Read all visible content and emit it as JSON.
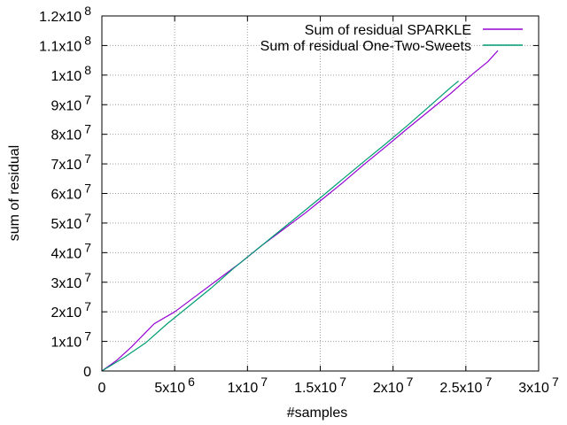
{
  "chart_data": {
    "type": "line",
    "title": "",
    "xlabel": "#samples",
    "ylabel": "sum of residual",
    "xlim": [
      0,
      30000000
    ],
    "ylim": [
      0,
      120000000
    ],
    "grid": true,
    "legend_position": "top-right",
    "x_ticks": [
      {
        "value": 0,
        "base": "0",
        "exp": ""
      },
      {
        "value": 5000000,
        "base": "5x10",
        "exp": "6"
      },
      {
        "value": 10000000,
        "base": "1x10",
        "exp": "7"
      },
      {
        "value": 15000000,
        "base": "1.5x10",
        "exp": "7"
      },
      {
        "value": 20000000,
        "base": "2x10",
        "exp": "7"
      },
      {
        "value": 25000000,
        "base": "2.5x10",
        "exp": "7"
      },
      {
        "value": 30000000,
        "base": "3x10",
        "exp": "7"
      }
    ],
    "y_ticks": [
      {
        "value": 0,
        "base": "0",
        "exp": ""
      },
      {
        "value": 10000000,
        "base": "1x10",
        "exp": "7"
      },
      {
        "value": 20000000,
        "base": "2x10",
        "exp": "7"
      },
      {
        "value": 30000000,
        "base": "3x10",
        "exp": "7"
      },
      {
        "value": 40000000,
        "base": "4x10",
        "exp": "7"
      },
      {
        "value": 50000000,
        "base": "5x10",
        "exp": "7"
      },
      {
        "value": 60000000,
        "base": "6x10",
        "exp": "7"
      },
      {
        "value": 70000000,
        "base": "7x10",
        "exp": "7"
      },
      {
        "value": 80000000,
        "base": "8x10",
        "exp": "7"
      },
      {
        "value": 90000000,
        "base": "9x10",
        "exp": "7"
      },
      {
        "value": 100000000,
        "base": "1x10",
        "exp": "8"
      },
      {
        "value": 110000000,
        "base": "1.1x10",
        "exp": "8"
      },
      {
        "value": 120000000,
        "base": "1.2x10",
        "exp": "8"
      }
    ],
    "series": [
      {
        "name": "Sum of residual SPARKLE",
        "color": "#9400d3",
        "points": [
          [
            0,
            0
          ],
          [
            1000000,
            3500000
          ],
          [
            2000000,
            8000000
          ],
          [
            3000000,
            13000000
          ],
          [
            3600000,
            16000000
          ],
          [
            5000000,
            20000000
          ],
          [
            6500000,
            25500000
          ],
          [
            8000000,
            31000000
          ],
          [
            9500000,
            36500000
          ],
          [
            11000000,
            42500000
          ],
          [
            12500000,
            48000000
          ],
          [
            14000000,
            53500000
          ],
          [
            15000000,
            57500000
          ],
          [
            16500000,
            63500000
          ],
          [
            18000000,
            69800000
          ],
          [
            19500000,
            75800000
          ],
          [
            21000000,
            82000000
          ],
          [
            22500000,
            88000000
          ],
          [
            24000000,
            94000000
          ],
          [
            25500000,
            100500000
          ],
          [
            26500000,
            104500000
          ],
          [
            27200000,
            108300000
          ]
        ]
      },
      {
        "name": "Sum of residual One-Two-Sweets",
        "color": "#009e73",
        "points": [
          [
            0,
            0
          ],
          [
            1500000,
            4500000
          ],
          [
            3000000,
            9500000
          ],
          [
            4500000,
            16000000
          ],
          [
            6000000,
            22000000
          ],
          [
            7500000,
            28000000
          ],
          [
            9000000,
            34500000
          ],
          [
            10500000,
            40500000
          ],
          [
            12000000,
            46500000
          ],
          [
            13500000,
            52500000
          ],
          [
            15000000,
            58500000
          ],
          [
            16500000,
            64700000
          ],
          [
            18000000,
            70800000
          ],
          [
            19500000,
            76800000
          ],
          [
            21000000,
            83000000
          ],
          [
            22500000,
            89500000
          ],
          [
            24000000,
            96000000
          ],
          [
            24500000,
            98000000
          ]
        ]
      }
    ]
  }
}
